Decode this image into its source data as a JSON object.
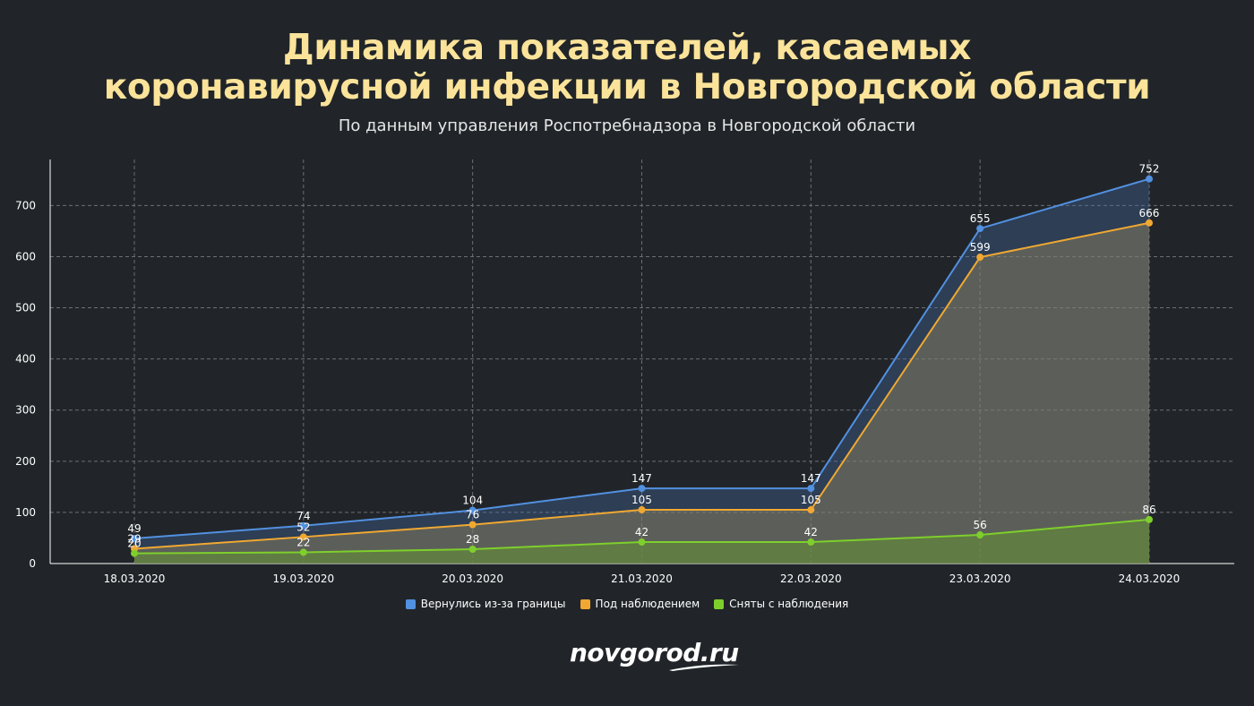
{
  "title_line1": "Динамика показателей, касаемых",
  "title_line2": "коронавирусной инфекции в Новгородской области",
  "subtitle": "По данным управления Роспотребнадзора в Новгородской области",
  "logo_text": "novgorod.ru",
  "chart_data": {
    "type": "area",
    "categories": [
      "18.03.2020",
      "19.03.2020",
      "20.03.2020",
      "21.03.2020",
      "22.03.2020",
      "23.03.2020",
      "24.03.2020"
    ],
    "ylim": [
      0,
      790
    ],
    "yticks": [
      0,
      100,
      200,
      300,
      400,
      500,
      600,
      700
    ],
    "grid": true,
    "legend_position": "bottom",
    "series": [
      {
        "name": "Вернулись из-за границы",
        "color": "#5290e0",
        "values": [
          49,
          74,
          104,
          147,
          147,
          655,
          752
        ]
      },
      {
        "name": "Под наблюдением",
        "color": "#f0a832",
        "values": [
          29,
          52,
          76,
          105,
          105,
          599,
          666
        ]
      },
      {
        "name": "Сняты с наблюдения",
        "color": "#7ecf2c",
        "values": [
          20,
          22,
          28,
          42,
          42,
          56,
          86
        ]
      }
    ]
  }
}
